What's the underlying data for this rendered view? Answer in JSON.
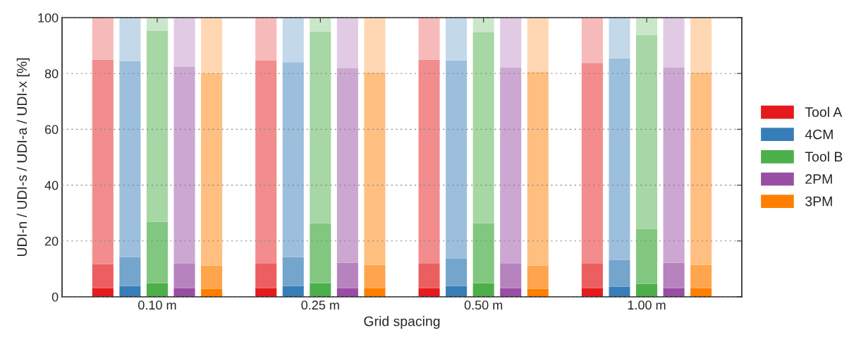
{
  "chart_data": {
    "type": "bar",
    "stacked": true,
    "xlabel": "Grid spacing",
    "ylabel": "UDI-n / UDI-s / UDI-a / UDI-x [%]",
    "categories": [
      null,
      null,
      "0.10 m",
      null,
      null,
      null,
      null,
      null,
      "0.25 m",
      null,
      null,
      null,
      null,
      null,
      "0.50 m",
      null,
      null,
      null,
      null,
      null,
      "1.00 m",
      null,
      null
    ],
    "ylim": [
      0,
      100
    ],
    "yticks": [
      0,
      20,
      40,
      60,
      80,
      100
    ],
    "grid": "y",
    "legend": "right",
    "series": [
      {
        "name": "Tool A",
        "color": "#e41a1c",
        "values": [
          3.1,
          null,
          null,
          null,
          null,
          null,
          3.1,
          null,
          null,
          null,
          null,
          null,
          3.1,
          null,
          null,
          null,
          null,
          null,
          3.1,
          null,
          null,
          null,
          null
        ]
      },
      {
        "color": "#ec5f60",
        "values": [
          8.6,
          null,
          null,
          null,
          null,
          null,
          8.8,
          null,
          null,
          null,
          null,
          null,
          8.8,
          null,
          null,
          null,
          null,
          null,
          8.8,
          null,
          null,
          null,
          null
        ]
      },
      {
        "color": "#f28c8d",
        "values": [
          73.2,
          null,
          null,
          null,
          null,
          null,
          72.7,
          null,
          null,
          null,
          null,
          null,
          73.0,
          null,
          null,
          null,
          null,
          null,
          71.9,
          null,
          null,
          null,
          null
        ]
      },
      {
        "color": "#f7baba",
        "values": [
          15.1,
          null,
          null,
          null,
          null,
          null,
          15.4,
          null,
          null,
          null,
          null,
          null,
          15.1,
          null,
          null,
          null,
          null,
          null,
          16.2,
          null,
          null,
          null,
          null
        ]
      },
      {
        "name": "4CM",
        "color": "#377eb8",
        "values": [
          null,
          3.9,
          null,
          null,
          null,
          null,
          null,
          3.9,
          null,
          null,
          null,
          null,
          null,
          3.9,
          null,
          null,
          null,
          null,
          null,
          3.6,
          null,
          null,
          null
        ]
      },
      {
        "color": "#73a5cd",
        "values": [
          null,
          10.3,
          null,
          null,
          null,
          null,
          null,
          10.3,
          null,
          null,
          null,
          null,
          null,
          9.8,
          null,
          null,
          null,
          null,
          null,
          9.6,
          null,
          null,
          null
        ]
      },
      {
        "color": "#9bbfdc",
        "values": [
          null,
          70.3,
          null,
          null,
          null,
          null,
          null,
          69.8,
          null,
          null,
          null,
          null,
          null,
          70.9,
          null,
          null,
          null,
          null,
          null,
          72.2,
          null,
          null,
          null
        ]
      },
      {
        "color": "#c3d9ea",
        "values": [
          null,
          15.5,
          null,
          null,
          null,
          null,
          null,
          16.0,
          null,
          null,
          null,
          null,
          null,
          15.4,
          null,
          null,
          null,
          null,
          null,
          14.6,
          null,
          null,
          null
        ]
      },
      {
        "name": "Tool B",
        "color": "#4daf4a",
        "values": [
          null,
          null,
          4.9,
          null,
          null,
          null,
          null,
          null,
          4.9,
          null,
          null,
          null,
          null,
          null,
          4.9,
          null,
          null,
          null,
          null,
          null,
          4.6,
          null,
          null
        ]
      },
      {
        "color": "#82c780",
        "values": [
          null,
          null,
          21.9,
          null,
          null,
          null,
          null,
          null,
          21.4,
          null,
          null,
          null,
          null,
          null,
          21.4,
          null,
          null,
          null,
          null,
          null,
          19.7,
          null,
          null
        ]
      },
      {
        "color": "#a6d7a4",
        "values": [
          null,
          null,
          68.4,
          null,
          null,
          null,
          null,
          null,
          68.7,
          null,
          null,
          null,
          null,
          null,
          68.4,
          null,
          null,
          null,
          null,
          null,
          69.4,
          null,
          null
        ]
      },
      {
        "color": "#cae7c9",
        "values": [
          null,
          null,
          4.8,
          null,
          null,
          null,
          null,
          null,
          5.0,
          null,
          null,
          null,
          null,
          null,
          5.3,
          null,
          null,
          null,
          null,
          null,
          6.3,
          null,
          null
        ]
      },
      {
        "name": "2PM",
        "color": "#984ea3",
        "values": [
          null,
          null,
          null,
          3.1,
          null,
          null,
          null,
          null,
          null,
          3.1,
          null,
          null,
          null,
          null,
          null,
          3.1,
          null,
          null,
          null,
          null,
          null,
          3.1,
          null
        ]
      },
      {
        "color": "#b783bf",
        "values": [
          null,
          null,
          null,
          8.8,
          null,
          null,
          null,
          null,
          null,
          9.1,
          null,
          null,
          null,
          null,
          null,
          8.8,
          null,
          null,
          null,
          null,
          null,
          9.1,
          null
        ]
      },
      {
        "color": "#cca7d1",
        "values": [
          null,
          null,
          null,
          70.4,
          null,
          null,
          null,
          null,
          null,
          69.6,
          null,
          null,
          null,
          null,
          null,
          70.2,
          null,
          null,
          null,
          null,
          null,
          69.9,
          null
        ]
      },
      {
        "color": "#e0cae4",
        "values": [
          null,
          null,
          null,
          17.7,
          null,
          null,
          null,
          null,
          null,
          18.2,
          null,
          null,
          null,
          null,
          null,
          17.9,
          null,
          null,
          null,
          null,
          null,
          17.9,
          null
        ]
      },
      {
        "name": "3PM",
        "color": "#ff7f00",
        "values": [
          null,
          null,
          null,
          null,
          2.9,
          null,
          null,
          null,
          null,
          null,
          3.1,
          null,
          null,
          null,
          null,
          null,
          2.9,
          null,
          null,
          null,
          null,
          null,
          3.1
        ]
      },
      {
        "color": "#ffa54d",
        "values": [
          null,
          null,
          null,
          null,
          8.3,
          null,
          null,
          null,
          null,
          null,
          8.3,
          null,
          null,
          null,
          null,
          null,
          8.3,
          null,
          null,
          null,
          null,
          null,
          8.3
        ]
      },
      {
        "color": "#ffbf80",
        "values": [
          null,
          null,
          null,
          null,
          69.0,
          null,
          null,
          null,
          null,
          null,
          68.9,
          null,
          null,
          null,
          null,
          null,
          69.4,
          null,
          null,
          null,
          null,
          null,
          68.9
        ]
      },
      {
        "color": "#ffd8b3",
        "values": [
          null,
          null,
          null,
          null,
          19.8,
          null,
          null,
          null,
          null,
          null,
          19.7,
          null,
          null,
          null,
          null,
          null,
          19.4,
          null,
          null,
          null,
          null,
          null,
          19.7
        ]
      }
    ]
  }
}
